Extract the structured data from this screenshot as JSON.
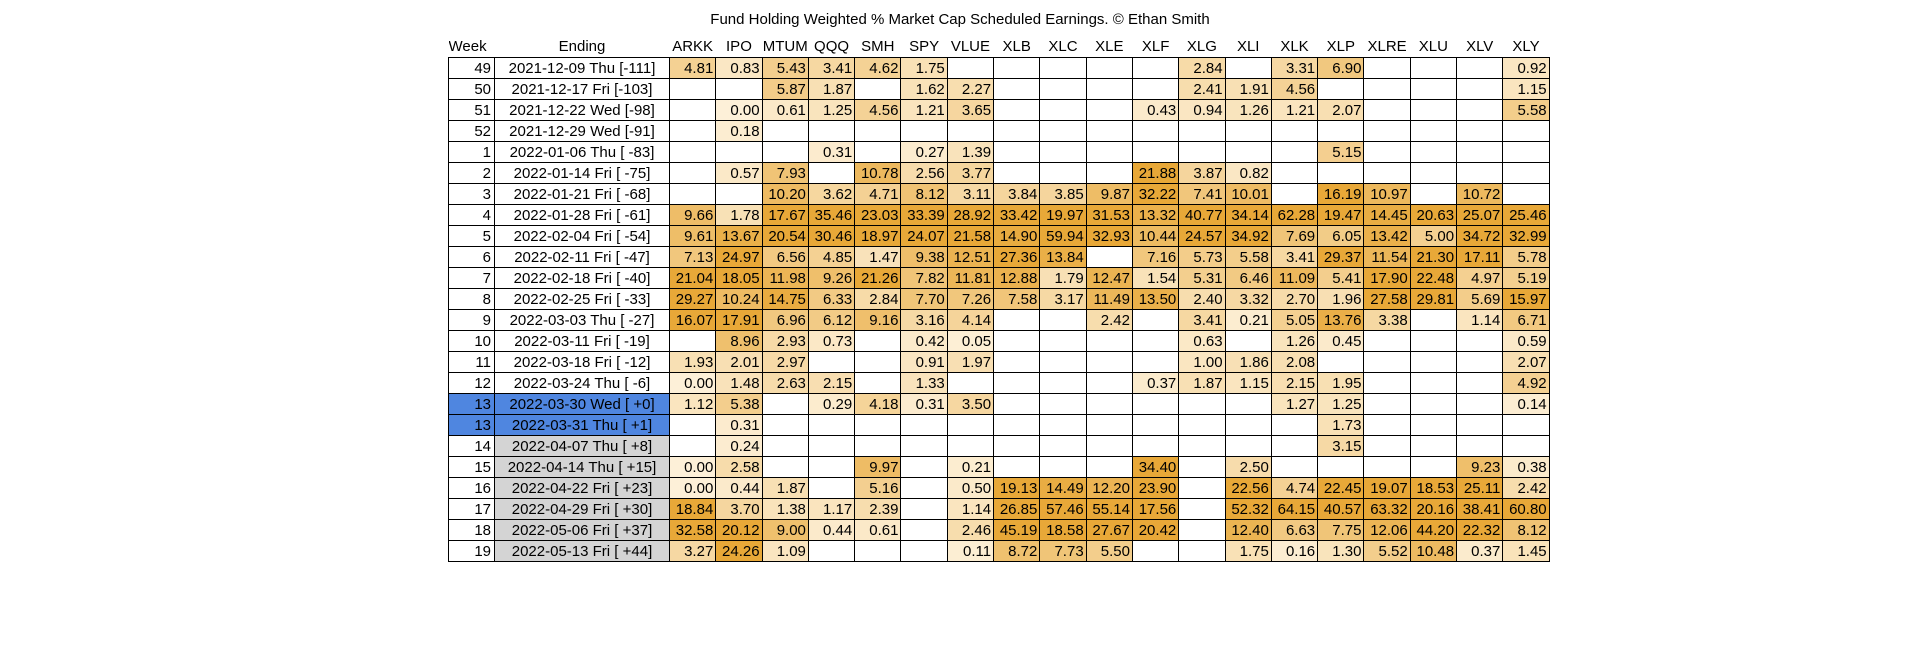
{
  "chart_data": {
    "type": "heatmap",
    "title": "Fund Holding Weighted % Market Cap Scheduled Earnings. © Ethan Smith",
    "row_headers": [
      "Week",
      "Ending"
    ],
    "columns": [
      "ARKK",
      "IPO",
      "MTUM",
      "QQQ",
      "SMH",
      "SPY",
      "VLUE",
      "XLB",
      "XLC",
      "XLE",
      "XLF",
      "XLG",
      "XLI",
      "XLK",
      "XLP",
      "XLRE",
      "XLU",
      "XLV",
      "XLY"
    ],
    "colors": {
      "low": "#fdf0d8",
      "high": "#e8a838",
      "current_week": "#4f86e0",
      "future_week": "#d4d4d4"
    },
    "rows": [
      {
        "week": "49",
        "ending": "2021-12-09 Thu [-111]",
        "status": "past",
        "values": [
          "4.81",
          "0.83",
          "5.43",
          "3.41",
          "4.62",
          "1.75",
          "",
          "",
          "",
          "",
          "",
          "2.84",
          "",
          "3.31",
          "6.90",
          "",
          "",
          "",
          "0.92"
        ]
      },
      {
        "week": "50",
        "ending": "2021-12-17 Fri [-103]",
        "status": "past",
        "values": [
          "",
          "",
          "5.87",
          "1.87",
          "",
          "1.62",
          "2.27",
          "",
          "",
          "",
          "",
          "2.41",
          "1.91",
          "4.56",
          "",
          "",
          "",
          "",
          "1.15"
        ]
      },
      {
        "week": "51",
        "ending": "2021-12-22 Wed [-98]",
        "status": "past",
        "values": [
          "",
          "0.00",
          "0.61",
          "1.25",
          "4.56",
          "1.21",
          "3.65",
          "",
          "",
          "",
          "0.43",
          "0.94",
          "1.26",
          "1.21",
          "2.07",
          "",
          "",
          "",
          "5.58"
        ]
      },
      {
        "week": "52",
        "ending": "2021-12-29 Wed [-91]",
        "status": "past",
        "values": [
          "",
          "0.18",
          "",
          "",
          "",
          "",
          "",
          "",
          "",
          "",
          "",
          "",
          "",
          "",
          "",
          "",
          "",
          "",
          ""
        ]
      },
      {
        "week": "1",
        "ending": "2022-01-06 Thu [ -83]",
        "status": "past",
        "values": [
          "",
          "",
          "",
          "0.31",
          "",
          "0.27",
          "1.39",
          "",
          "",
          "",
          "",
          "",
          "",
          "",
          "5.15",
          "",
          "",
          "",
          ""
        ]
      },
      {
        "week": "2",
        "ending": "2022-01-14 Fri [ -75]",
        "status": "past",
        "values": [
          "",
          "0.57",
          "7.93",
          "",
          "10.78",
          "2.56",
          "3.77",
          "",
          "",
          "",
          "21.88",
          "3.87",
          "0.82",
          "",
          "",
          "",
          "",
          "",
          ""
        ]
      },
      {
        "week": "3",
        "ending": "2022-01-21 Fri [ -68]",
        "status": "past",
        "values": [
          "",
          "",
          "10.20",
          "3.62",
          "4.71",
          "8.12",
          "3.11",
          "3.84",
          "3.85",
          "9.87",
          "32.22",
          "7.41",
          "10.01",
          "",
          "16.19",
          "10.97",
          "",
          "10.72",
          ""
        ]
      },
      {
        "week": "4",
        "ending": "2022-01-28 Fri [ -61]",
        "status": "past",
        "values": [
          "9.66",
          "1.78",
          "17.67",
          "35.46",
          "23.03",
          "33.39",
          "28.92",
          "33.42",
          "19.97",
          "31.53",
          "13.32",
          "40.77",
          "34.14",
          "62.28",
          "19.47",
          "14.45",
          "20.63",
          "25.07",
          "25.46"
        ]
      },
      {
        "week": "5",
        "ending": "2022-02-04 Fri [ -54]",
        "status": "past",
        "values": [
          "9.61",
          "13.67",
          "20.54",
          "30.46",
          "18.97",
          "24.07",
          "21.58",
          "14.90",
          "59.94",
          "32.93",
          "10.44",
          "24.57",
          "34.92",
          "7.69",
          "6.05",
          "13.42",
          "5.00",
          "34.72",
          "32.99"
        ]
      },
      {
        "week": "6",
        "ending": "2022-02-11 Fri [ -47]",
        "status": "past",
        "values": [
          "7.13",
          "24.97",
          "6.56",
          "4.85",
          "1.47",
          "9.38",
          "12.51",
          "27.36",
          "13.84",
          "",
          "7.16",
          "5.73",
          "5.58",
          "3.41",
          "29.37",
          "11.54",
          "21.30",
          "17.11",
          "5.78"
        ]
      },
      {
        "week": "7",
        "ending": "2022-02-18 Fri [ -40]",
        "status": "past",
        "values": [
          "21.04",
          "18.05",
          "11.98",
          "9.26",
          "21.26",
          "7.82",
          "11.81",
          "12.88",
          "1.79",
          "12.47",
          "1.54",
          "5.31",
          "6.46",
          "11.09",
          "5.41",
          "17.90",
          "22.48",
          "4.97",
          "5.19"
        ]
      },
      {
        "week": "8",
        "ending": "2022-02-25 Fri [ -33]",
        "status": "past",
        "values": [
          "29.27",
          "10.24",
          "14.75",
          "6.33",
          "2.84",
          "7.70",
          "7.26",
          "7.58",
          "3.17",
          "11.49",
          "13.50",
          "2.40",
          "3.32",
          "2.70",
          "1.96",
          "27.58",
          "29.81",
          "5.69",
          "15.97"
        ]
      },
      {
        "week": "9",
        "ending": "2022-03-03 Thu [ -27]",
        "status": "past",
        "values": [
          "16.07",
          "17.91",
          "6.96",
          "6.12",
          "9.16",
          "3.16",
          "4.14",
          "",
          "",
          "2.42",
          "",
          "3.41",
          "0.21",
          "5.05",
          "13.76",
          "3.38",
          "",
          "1.14",
          "6.71"
        ]
      },
      {
        "week": "10",
        "ending": "2022-03-11 Fri [ -19]",
        "status": "past",
        "values": [
          "",
          "8.96",
          "2.93",
          "0.73",
          "",
          "0.42",
          "0.05",
          "",
          "",
          "",
          "",
          "0.63",
          "",
          "1.26",
          "0.45",
          "",
          "",
          "",
          "0.59"
        ]
      },
      {
        "week": "11",
        "ending": "2022-03-18 Fri [ -12]",
        "status": "past",
        "values": [
          "1.93",
          "2.01",
          "2.97",
          "",
          "",
          "0.91",
          "1.97",
          "",
          "",
          "",
          "",
          "1.00",
          "1.86",
          "2.08",
          "",
          "",
          "",
          "",
          "2.07"
        ]
      },
      {
        "week": "12",
        "ending": "2022-03-24 Thu [ -6]",
        "status": "past",
        "values": [
          "0.00",
          "1.48",
          "2.63",
          "2.15",
          "",
          "1.33",
          "",
          "",
          "",
          "",
          "0.37",
          "1.87",
          "1.15",
          "2.15",
          "1.95",
          "",
          "",
          "",
          "4.92"
        ]
      },
      {
        "week": "13",
        "ending": "2022-03-30 Wed [ +0]",
        "status": "current",
        "values": [
          "1.12",
          "5.38",
          "",
          "0.29",
          "4.18",
          "0.31",
          "3.50",
          "",
          "",
          "",
          "",
          "",
          "",
          "1.27",
          "1.25",
          "",
          "",
          "",
          "0.14"
        ]
      },
      {
        "week": "13",
        "ending": "2022-03-31 Thu [ +1]",
        "status": "current",
        "values": [
          "",
          "0.31",
          "",
          "",
          "",
          "",
          "",
          "",
          "",
          "",
          "",
          "",
          "",
          "",
          "1.73",
          "",
          "",
          "",
          ""
        ]
      },
      {
        "week": "14",
        "ending": "2022-04-07 Thu [ +8]",
        "status": "future",
        "values": [
          "",
          "0.24",
          "",
          "",
          "",
          "",
          "",
          "",
          "",
          "",
          "",
          "",
          "",
          "",
          "3.15",
          "",
          "",
          "",
          ""
        ]
      },
      {
        "week": "15",
        "ending": "2022-04-14 Thu [ +15]",
        "status": "future",
        "values": [
          "0.00",
          "2.58",
          "",
          "",
          "9.97",
          "",
          "0.21",
          "",
          "",
          "",
          "34.40",
          "",
          "2.50",
          "",
          "",
          "",
          "",
          "9.23",
          "0.38"
        ]
      },
      {
        "week": "16",
        "ending": "2022-04-22 Fri [ +23]",
        "status": "future",
        "values": [
          "0.00",
          "0.44",
          "1.87",
          "",
          "5.16",
          "",
          "0.50",
          "19.13",
          "14.49",
          "12.20",
          "23.90",
          "",
          "22.56",
          "4.74",
          "22.45",
          "19.07",
          "18.53",
          "25.11",
          "2.42"
        ]
      },
      {
        "week": "17",
        "ending": "2022-04-29 Fri [ +30]",
        "status": "future",
        "values": [
          "18.84",
          "3.70",
          "1.38",
          "1.17",
          "2.39",
          "",
          "1.14",
          "26.85",
          "57.46",
          "55.14",
          "17.56",
          "",
          "52.32",
          "64.15",
          "40.57",
          "63.32",
          "20.16",
          "38.41",
          "60.80"
        ]
      },
      {
        "week": "18",
        "ending": "2022-05-06 Fri [ +37]",
        "status": "future",
        "values": [
          "32.58",
          "20.12",
          "9.00",
          "0.44",
          "0.61",
          "",
          "2.46",
          "45.19",
          "18.58",
          "27.67",
          "20.42",
          "",
          "12.40",
          "6.63",
          "7.75",
          "12.06",
          "44.20",
          "22.32",
          "8.12"
        ]
      },
      {
        "week": "19",
        "ending": "2022-05-13 Fri [ +44]",
        "status": "future",
        "values": [
          "3.27",
          "24.26",
          "1.09",
          "",
          "",
          "",
          "0.11",
          "8.72",
          "7.73",
          "5.50",
          "",
          "",
          "1.75",
          "0.16",
          "1.30",
          "5.52",
          "10.48",
          "0.37",
          "1.45"
        ]
      }
    ]
  }
}
